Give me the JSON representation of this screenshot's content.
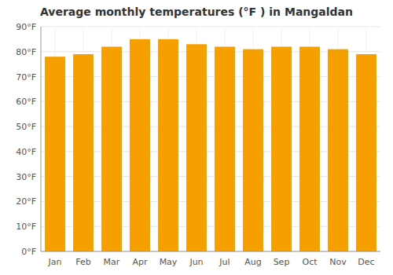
{
  "chart_data": {
    "type": "bar",
    "title": "Average monthly temperatures (°F ) in Mangaldan",
    "categories": [
      "Jan",
      "Feb",
      "Mar",
      "Apr",
      "May",
      "Jun",
      "Jul",
      "Aug",
      "Sep",
      "Oct",
      "Nov",
      "Dec"
    ],
    "values": [
      78,
      79,
      82,
      85,
      85,
      83,
      82,
      81,
      82,
      82,
      81,
      79
    ],
    "color": "#F5A000",
    "ylim": [
      0,
      90
    ],
    "yticks": [
      {
        "value": 0,
        "label": "0°F"
      },
      {
        "value": 10,
        "label": "10°F"
      },
      {
        "value": 20,
        "label": "20°F"
      },
      {
        "value": 30,
        "label": "30°F"
      },
      {
        "value": 40,
        "label": "40°F"
      },
      {
        "value": 50,
        "label": "50°F"
      },
      {
        "value": 60,
        "label": "60°F"
      },
      {
        "value": 70,
        "label": "70°F"
      },
      {
        "value": 80,
        "label": "80°F"
      },
      {
        "value": 90,
        "label": "90°F"
      }
    ],
    "grid": true
  }
}
